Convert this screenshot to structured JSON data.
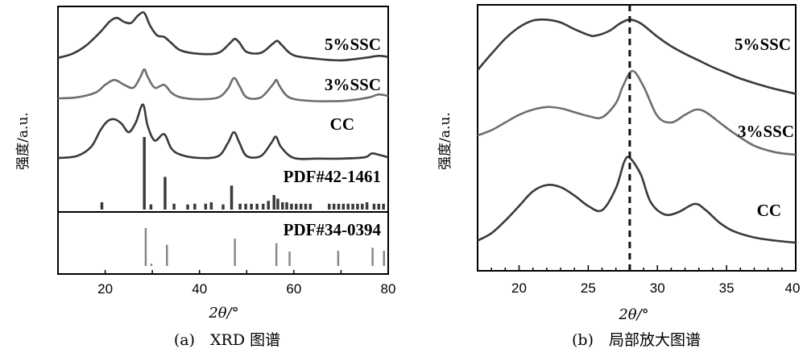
{
  "chart_data": [
    {
      "panel": "a",
      "type": "line",
      "caption": "(a)　XRD 图谱",
      "xlabel": "2θ/°",
      "ylabel": "强度/a.u.",
      "xlim": [
        10,
        80
      ],
      "xticks": [
        20,
        40,
        60,
        80
      ],
      "series": [
        {
          "name": "5%SSC",
          "color": "#3a3a3a",
          "x": [
            10,
            13,
            16,
            19,
            21,
            22.5,
            24,
            25.5,
            27,
            28.3,
            29.5,
            31,
            32.5,
            34,
            36,
            40,
            44,
            46.5,
            47.5,
            48.5,
            50,
            53,
            55.5,
            56.5,
            57.5,
            60,
            65,
            70,
            75,
            78,
            80
          ],
          "y": [
            0.1,
            0.18,
            0.35,
            0.62,
            0.83,
            0.9,
            0.82,
            0.8,
            0.95,
            1.0,
            0.75,
            0.55,
            0.52,
            0.4,
            0.25,
            0.18,
            0.2,
            0.4,
            0.48,
            0.4,
            0.22,
            0.2,
            0.38,
            0.44,
            0.35,
            0.15,
            0.08,
            0.05,
            0.1,
            0.14,
            0.12
          ]
        },
        {
          "name": "3%SSC",
          "color": "#6e6e6e",
          "x": [
            10,
            14,
            18,
            20,
            22,
            24,
            26,
            27.5,
            28.3,
            29,
            30.5,
            32.5,
            34,
            36,
            40,
            44,
            46,
            47.3,
            48.5,
            50,
            53,
            55.5,
            56.3,
            57,
            59,
            63,
            68,
            72,
            76,
            78,
            80
          ],
          "y": [
            0.1,
            0.12,
            0.22,
            0.38,
            0.48,
            0.38,
            0.32,
            0.55,
            0.7,
            0.55,
            0.32,
            0.38,
            0.22,
            0.12,
            0.08,
            0.12,
            0.3,
            0.52,
            0.35,
            0.12,
            0.12,
            0.38,
            0.48,
            0.35,
            0.12,
            0.05,
            0.04,
            0.06,
            0.12,
            0.18,
            0.15
          ]
        },
        {
          "name": "CC",
          "color": "#3a3a3a",
          "x": [
            10,
            14,
            17,
            19,
            20.5,
            22,
            23.5,
            25,
            26.5,
            28,
            29,
            30.5,
            32.5,
            34,
            36,
            40,
            44,
            46,
            47.3,
            48.5,
            50,
            53,
            55.2,
            56.2,
            57.3,
            60,
            65,
            70,
            75,
            76.5,
            78,
            80
          ],
          "y": [
            0.05,
            0.08,
            0.22,
            0.48,
            0.62,
            0.65,
            0.58,
            0.45,
            0.6,
            0.88,
            0.55,
            0.32,
            0.42,
            0.2,
            0.1,
            0.05,
            0.08,
            0.28,
            0.45,
            0.28,
            0.08,
            0.08,
            0.28,
            0.38,
            0.22,
            0.05,
            0.04,
            0.04,
            0.06,
            0.12,
            0.1,
            0.06
          ]
        }
      ],
      "references": [
        {
          "name": "PDF#42-1461",
          "color": "#3a3a3a",
          "sticks": [
            [
              19.3,
              0.1
            ],
            [
              28.3,
              1.0
            ],
            [
              29.7,
              0.07
            ],
            [
              32.7,
              0.45
            ],
            [
              34.6,
              0.08
            ],
            [
              37.5,
              0.07
            ],
            [
              39.0,
              0.08
            ],
            [
              41.3,
              0.08
            ],
            [
              42.5,
              0.1
            ],
            [
              45.0,
              0.07
            ],
            [
              46.8,
              0.33
            ],
            [
              48.6,
              0.08
            ],
            [
              49.8,
              0.08
            ],
            [
              51.0,
              0.08
            ],
            [
              52.2,
              0.08
            ],
            [
              53.5,
              0.08
            ],
            [
              54.6,
              0.12
            ],
            [
              55.8,
              0.2
            ],
            [
              56.6,
              0.15
            ],
            [
              57.6,
              0.1
            ],
            [
              58.5,
              0.1
            ],
            [
              59.5,
              0.08
            ],
            [
              60.5,
              0.08
            ],
            [
              61.5,
              0.08
            ],
            [
              62.5,
              0.08
            ],
            [
              63.5,
              0.08
            ],
            [
              67.5,
              0.08
            ],
            [
              68.5,
              0.08
            ],
            [
              69.5,
              0.08
            ],
            [
              70.5,
              0.08
            ],
            [
              71.5,
              0.08
            ],
            [
              72.5,
              0.08
            ],
            [
              73.5,
              0.08
            ],
            [
              74.5,
              0.08
            ],
            [
              75.5,
              0.1
            ],
            [
              77.0,
              0.08
            ],
            [
              78.0,
              0.08
            ],
            [
              79.0,
              0.08
            ]
          ]
        },
        {
          "name": "PDF#34-0394",
          "color": "#888888",
          "sticks": [
            [
              28.6,
              1.0
            ],
            [
              29.8,
              0.06
            ],
            [
              33.1,
              0.56
            ],
            [
              47.5,
              0.72
            ],
            [
              56.3,
              0.6
            ],
            [
              59.1,
              0.38
            ],
            [
              69.4,
              0.4
            ],
            [
              76.7,
              0.48
            ],
            [
              79.1,
              0.4
            ]
          ]
        }
      ]
    },
    {
      "panel": "b",
      "type": "line",
      "caption": "(b)　局部放大图谱",
      "xlabel": "2θ/°",
      "ylabel": "强度/a.u.",
      "xlim": [
        17,
        40
      ],
      "xticks": [
        20,
        25,
        30,
        35,
        40
      ],
      "reference_line_x": 28.0,
      "series": [
        {
          "name": "5%SSC",
          "color": "#3a3a3a",
          "x": [
            17,
            18,
            19,
            20,
            21,
            22,
            23,
            24,
            25,
            25.5,
            26.5,
            27.3,
            28,
            28.8,
            30,
            31,
            32,
            33,
            34,
            35,
            36,
            38,
            40
          ],
          "y": [
            0.45,
            0.62,
            0.78,
            0.9,
            0.97,
            0.98,
            0.95,
            0.88,
            0.82,
            0.81,
            0.86,
            0.94,
            0.98,
            0.94,
            0.8,
            0.7,
            0.62,
            0.55,
            0.48,
            0.42,
            0.36,
            0.27,
            0.2
          ]
        },
        {
          "name": "3%SSC",
          "color": "#6e6e6e",
          "x": [
            17,
            18,
            19,
            20,
            21,
            22,
            23,
            24,
            25,
            26,
            27,
            27.5,
            28.2,
            29,
            30,
            31,
            32,
            32.8,
            33.5,
            34.5,
            35.5,
            37,
            38.5,
            40
          ],
          "y": [
            0.2,
            0.24,
            0.3,
            0.36,
            0.4,
            0.42,
            0.41,
            0.38,
            0.35,
            0.34,
            0.45,
            0.58,
            0.7,
            0.58,
            0.35,
            0.3,
            0.36,
            0.4,
            0.38,
            0.3,
            0.22,
            0.12,
            0.07,
            0.05
          ]
        },
        {
          "name": "CC",
          "color": "#3a3a3a",
          "x": [
            17,
            18,
            19,
            20,
            21,
            22,
            23,
            24,
            25,
            26,
            27,
            27.6,
            28,
            28.8,
            29.5,
            30.5,
            31.5,
            32.7,
            33.5,
            34.5,
            35.5,
            37,
            38.5,
            40
          ],
          "y": [
            0.05,
            0.12,
            0.24,
            0.38,
            0.52,
            0.58,
            0.56,
            0.48,
            0.38,
            0.34,
            0.55,
            0.8,
            0.84,
            0.68,
            0.42,
            0.3,
            0.32,
            0.4,
            0.34,
            0.22,
            0.14,
            0.08,
            0.05,
            0.03
          ]
        }
      ]
    }
  ]
}
